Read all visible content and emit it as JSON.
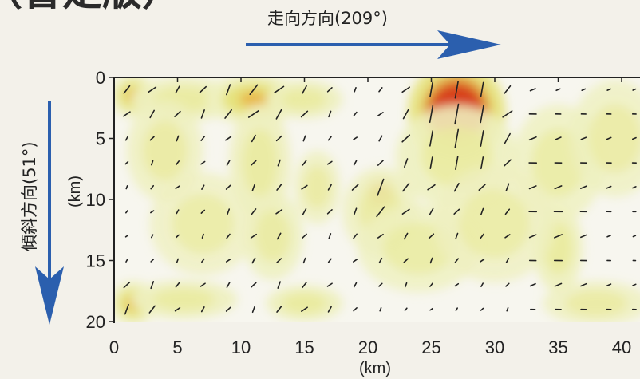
{
  "chart_data": {
    "type": "heatmap",
    "title_fragment": "（暫定版）",
    "strike_label": "走向方向(209°)",
    "dip_label": "傾斜方向(51°)",
    "xlabel": "(km)",
    "ylabel": "(km)",
    "xlim": [
      0,
      41
    ],
    "ylim": [
      0,
      20
    ],
    "x_ticks": [
      0,
      5,
      10,
      15,
      20,
      25,
      30,
      35,
      40
    ],
    "y_ticks": [
      0,
      5,
      10,
      15,
      20
    ],
    "colors": {
      "background": "#f3f1ea",
      "low": "#eef0bf",
      "mid": "#e6e27a",
      "high": "#d8431d",
      "arrow": "#2b5fae"
    },
    "slip_patches": [
      {
        "x": 1.5,
        "y": 1.5,
        "sx": 1.2,
        "sy": 1.2,
        "level": 0.35
      },
      {
        "x": 5.5,
        "y": 1.8,
        "sx": 3.5,
        "sy": 1.5,
        "level": 0.22
      },
      {
        "x": 11,
        "y": 1.8,
        "sx": 2.5,
        "sy": 1.4,
        "level": 0.4
      },
      {
        "x": 15,
        "y": 1.8,
        "sx": 2.5,
        "sy": 1.3,
        "level": 0.22
      },
      {
        "x": 4,
        "y": 6,
        "sx": 2.5,
        "sy": 3.5,
        "level": 0.14
      },
      {
        "x": 11.5,
        "y": 7,
        "sx": 2.0,
        "sy": 4.0,
        "level": 0.2
      },
      {
        "x": 12.5,
        "y": 13,
        "sx": 2.0,
        "sy": 3.0,
        "level": 0.16
      },
      {
        "x": 27,
        "y": 2.8,
        "sx": 2.4,
        "sy": 2.6,
        "level": 1.0
      },
      {
        "x": 27,
        "y": 6.5,
        "sx": 4.0,
        "sy": 3.5,
        "level": 0.18
      },
      {
        "x": 21,
        "y": 9.6,
        "sx": 0.9,
        "sy": 0.9,
        "level": 0.8
      },
      {
        "x": 21,
        "y": 11,
        "sx": 2.5,
        "sy": 3.0,
        "level": 0.14
      },
      {
        "x": 16,
        "y": 9,
        "sx": 1.5,
        "sy": 2.5,
        "level": 0.14
      },
      {
        "x": 24,
        "y": 14,
        "sx": 4.0,
        "sy": 3.0,
        "level": 0.12
      },
      {
        "x": 1.5,
        "y": 18.5,
        "sx": 1.2,
        "sy": 1.2,
        "level": 0.45
      },
      {
        "x": 5.5,
        "y": 18.2,
        "sx": 3.5,
        "sy": 1.3,
        "level": 0.22
      },
      {
        "x": 15,
        "y": 18.5,
        "sx": 2.5,
        "sy": 1.2,
        "level": 0.28
      },
      {
        "x": 35,
        "y": 14,
        "sx": 1.6,
        "sy": 3.0,
        "level": 0.26
      },
      {
        "x": 35,
        "y": 7,
        "sx": 3.0,
        "sy": 4.0,
        "level": 0.12
      },
      {
        "x": 39.5,
        "y": 5,
        "sx": 3.0,
        "sy": 4.0,
        "level": 0.1
      },
      {
        "x": 38,
        "y": 18.5,
        "sx": 3.5,
        "sy": 1.5,
        "level": 0.14
      },
      {
        "x": 7,
        "y": 12,
        "sx": 3.5,
        "sy": 3.5,
        "level": 0.08
      },
      {
        "x": 30,
        "y": 12,
        "sx": 4.0,
        "sy": 4.0,
        "level": 0.08
      }
    ]
  }
}
